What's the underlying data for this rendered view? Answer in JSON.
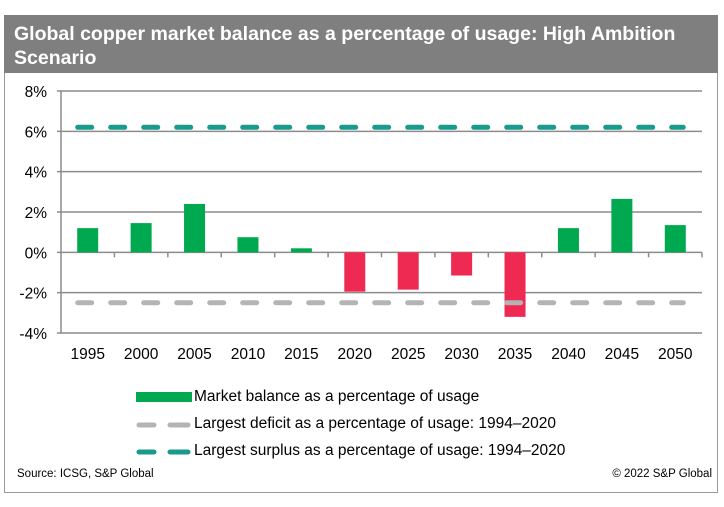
{
  "title": "Global copper market balance as a percentage of usage: High Ambition Scenario",
  "colors": {
    "positive_bar": "#00a94f",
    "negative_bar": "#ee2a52",
    "surplus_line": "#1a9a8c",
    "deficit_line": "#b4b4b4",
    "grid": "#8c8c8c",
    "title_bg": "#7f7f7f"
  },
  "chart_data": {
    "type": "bar",
    "title": "Global copper market balance as a percentage of usage: High Ambition Scenario",
    "xlabel": "",
    "ylabel": "",
    "categories": [
      "1995",
      "2000",
      "2005",
      "2010",
      "2015",
      "2020",
      "2025",
      "2030",
      "2035",
      "2040",
      "2045",
      "2050"
    ],
    "series": [
      {
        "name": "Market balance as a percentage of usage",
        "type": "bar",
        "values": [
          1.2,
          1.45,
          2.4,
          0.75,
          0.2,
          -1.95,
          -1.85,
          -1.15,
          -3.2,
          1.2,
          2.65,
          1.35
        ]
      },
      {
        "name": "Largest deficit as a percentage of usage: 1994–2020",
        "type": "line",
        "style": "dashed",
        "value": -2.5
      },
      {
        "name": "Largest surplus as a percentage of usage: 1994–2020",
        "type": "line",
        "style": "dashed",
        "value": 6.2
      }
    ],
    "ylim": [
      -4,
      8
    ],
    "yticks": [
      8,
      6,
      4,
      2,
      0,
      -2,
      -4
    ],
    "ytick_labels": [
      "8%",
      "6%",
      "4%",
      "2%",
      "0%",
      "-2%",
      "-4%"
    ],
    "grid": true,
    "legend_position": "bottom"
  },
  "legend": [
    {
      "label": "Market balance as a percentage of usage"
    },
    {
      "label": "Largest deficit as a percentage of usage: 1994–2020"
    },
    {
      "label": "Largest surplus as a percentage of usage: 1994–2020"
    }
  ],
  "footer": {
    "source": "Source: ICSG, S&P Global",
    "copyright": "© 2022 S&P Global"
  }
}
